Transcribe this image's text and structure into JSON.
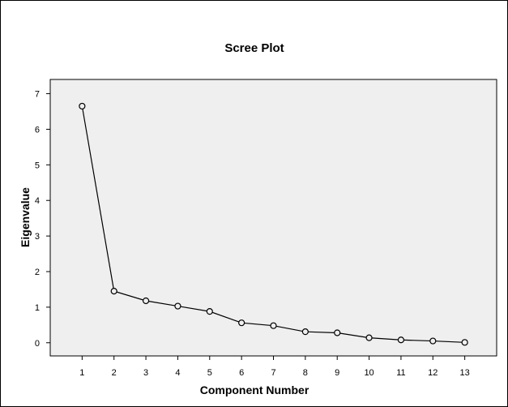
{
  "chart_data": {
    "type": "line",
    "title": "Scree Plot",
    "xlabel": "Component Number",
    "ylabel": "Eigenvalue",
    "x": [
      1,
      2,
      3,
      4,
      5,
      6,
      7,
      8,
      9,
      10,
      11,
      12,
      13
    ],
    "series": [
      {
        "values": [
          6.65,
          1.45,
          1.18,
          1.03,
          0.88,
          0.56,
          0.48,
          0.31,
          0.28,
          0.14,
          0.08,
          0.05,
          0.01
        ]
      }
    ],
    "xticks": [
      "1",
      "2",
      "3",
      "4",
      "5",
      "6",
      "7",
      "8",
      "9",
      "10",
      "11",
      "12",
      "13"
    ],
    "yticks": [
      "0",
      "1",
      "2",
      "3",
      "4",
      "5",
      "6",
      "7"
    ],
    "ylim": [
      -0.37,
      7.4
    ],
    "xlim": [
      0,
      14
    ],
    "grid": false,
    "plot_background": "#efefef",
    "line_color": "#000000",
    "marker": "open-circle"
  }
}
